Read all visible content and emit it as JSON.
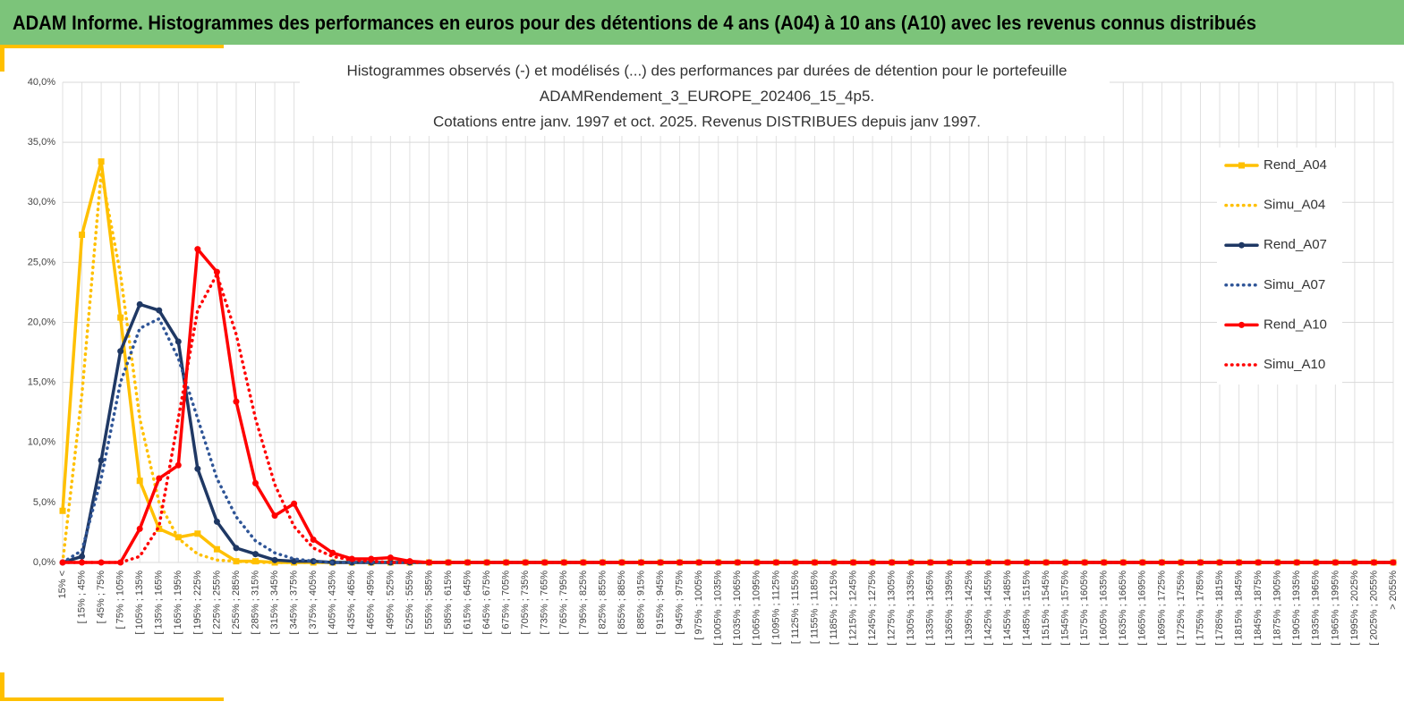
{
  "header": {
    "title": "ADAM Informe. Histogrammes des performances en euros pour des détentions de 4 ans (A04) à 10 ans (A10) avec les revenus connus distribués"
  },
  "chart_data": {
    "type": "line",
    "title": [
      "Histogrammes observés (-) et modélisés (...) des performances  par durées de détention pour le portefeuille",
      "ADAMRendement_3_EUROPE_202406_15_4p5.",
      "Cotations entre janv. 1997 et oct. 2025. Revenus DISTRIBUES depuis janv 1997."
    ],
    "categories": [
      "15% <",
      "[ 15% ; 45%",
      "[ 45% ; 75%",
      "[ 75% ; 105%",
      "[ 105% ; 135%",
      "[ 135% ; 165%",
      "[ 165% ; 195%",
      "[ 195% ; 225%",
      "[ 225% ; 255%",
      "[ 255% ; 285%",
      "[ 285% ; 315%",
      "[ 315% ; 345%",
      "[ 345% ; 375%",
      "[ 375% ; 405%",
      "[ 405% ; 435%",
      "[ 435% ; 465%",
      "[ 465% ; 495%",
      "[ 495% ; 525%",
      "[ 525% ; 555%",
      "[ 555% ; 585%",
      "[ 585% ; 615%",
      "[ 615% ; 645%",
      "[ 645% ; 675%",
      "[ 675% ; 705%",
      "[ 705% ; 735%",
      "[ 735% ; 765%",
      "[ 765% ; 795%",
      "[ 795% ; 825%",
      "[ 825% ; 855%",
      "[ 855% ; 885%",
      "[ 885% ; 915%",
      "[ 915% ; 945%",
      "[ 945% ; 975%",
      "[ 975% ; 1005%",
      "[ 1005% ; 1035%",
      "[ 1035% ; 1065%",
      "[ 1065% ; 1095%",
      "[ 1095% ; 1125%",
      "[ 1125% ; 1155%",
      "[ 1155% ; 1185%",
      "[ 1185% ; 1215%",
      "[ 1215% ; 1245%",
      "[ 1245% ; 1275%",
      "[ 1275% ; 1305%",
      "[ 1305% ; 1335%",
      "[ 1335% ; 1365%",
      "[ 1365% ; 1395%",
      "[ 1395% ; 1425%",
      "[ 1425% ; 1455%",
      "[ 1455% ; 1485%",
      "[ 1485% ; 1515%",
      "[ 1515% ; 1545%",
      "[ 1545% ; 1575%",
      "[ 1575% ; 1605%",
      "[ 1605% ; 1635%",
      "[ 1635% ; 1665%",
      "[ 1665% ; 1695%",
      "[ 1695% ; 1725%",
      "[ 1725% ; 1755%",
      "[ 1755% ; 1785%",
      "[ 1785% ; 1815%",
      "[ 1815% ; 1845%",
      "[ 1845% ; 1875%",
      "[ 1875% ; 1905%",
      "[ 1905% ; 1935%",
      "[ 1935% ; 1965%",
      "[ 1965% ; 1995%",
      "[ 1995% ; 2025%",
      "[ 2025% ; 2055%",
      "> 2055%"
    ],
    "series": [
      {
        "name": "Rend_A04",
        "color": "#ffc000",
        "dotted": false,
        "marker": "square",
        "values": [
          4.3,
          27.3,
          33.4,
          20.4,
          6.8,
          2.8,
          2.1,
          2.4,
          1.1,
          0.1,
          0.1,
          0,
          0,
          0,
          0,
          0,
          0,
          0,
          0,
          0,
          0,
          0,
          0,
          0,
          0,
          0,
          0,
          0,
          0,
          0,
          0,
          0,
          0,
          0,
          0,
          0,
          0,
          0,
          0,
          0,
          0,
          0,
          0,
          0,
          0,
          0,
          0,
          0,
          0,
          0,
          0,
          0,
          0,
          0,
          0,
          0,
          0,
          0,
          0,
          0,
          0,
          0,
          0,
          0,
          0,
          0,
          0,
          0,
          0,
          0
        ]
      },
      {
        "name": "Simu_A04",
        "color": "#ffc000",
        "dotted": true,
        "values": [
          0,
          14,
          32.5,
          24,
          12,
          5,
          2,
          0.7,
          0.2,
          0.1,
          0,
          0,
          0,
          0,
          0,
          0,
          0,
          0,
          0,
          0,
          0,
          0,
          0,
          0,
          0,
          0,
          0,
          0,
          0,
          0,
          0,
          0,
          0,
          0,
          0,
          0,
          0,
          0,
          0,
          0,
          0,
          0,
          0,
          0,
          0,
          0,
          0,
          0,
          0,
          0,
          0,
          0,
          0,
          0,
          0,
          0,
          0,
          0,
          0,
          0,
          0,
          0,
          0,
          0,
          0,
          0,
          0,
          0,
          0,
          0
        ]
      },
      {
        "name": "Rend_A07",
        "color": "#1f3864",
        "dotted": false,
        "marker": "circle",
        "values": [
          0,
          0.5,
          8.5,
          17.6,
          21.5,
          21,
          18.4,
          7.8,
          3.4,
          1.2,
          0.7,
          0.2,
          0.1,
          0.1,
          0,
          0,
          0,
          0,
          0,
          0,
          0,
          0,
          0,
          0,
          0,
          0,
          0,
          0,
          0,
          0,
          0,
          0,
          0,
          0,
          0,
          0,
          0,
          0,
          0,
          0,
          0,
          0,
          0,
          0,
          0,
          0,
          0,
          0,
          0,
          0,
          0,
          0,
          0,
          0,
          0,
          0,
          0,
          0,
          0,
          0,
          0,
          0,
          0,
          0,
          0,
          0,
          0,
          0,
          0,
          0
        ]
      },
      {
        "name": "Simu_A07",
        "color": "#2f5597",
        "dotted": true,
        "values": [
          0,
          1,
          7,
          15,
          19.5,
          20.3,
          17,
          12,
          7,
          3.8,
          1.8,
          0.8,
          0.3,
          0.1,
          0,
          0,
          0,
          0,
          0,
          0,
          0,
          0,
          0,
          0,
          0,
          0,
          0,
          0,
          0,
          0,
          0,
          0,
          0,
          0,
          0,
          0,
          0,
          0,
          0,
          0,
          0,
          0,
          0,
          0,
          0,
          0,
          0,
          0,
          0,
          0,
          0,
          0,
          0,
          0,
          0,
          0,
          0,
          0,
          0,
          0,
          0,
          0,
          0,
          0,
          0,
          0,
          0,
          0,
          0,
          0
        ]
      },
      {
        "name": "Rend_A10",
        "color": "#ff0000",
        "dotted": false,
        "marker": "circle",
        "values": [
          0,
          0,
          0,
          0,
          2.8,
          7,
          8.1,
          26.1,
          24.2,
          13.4,
          6.6,
          3.9,
          4.9,
          1.9,
          0.8,
          0.3,
          0.3,
          0.4,
          0.1,
          0,
          0,
          0,
          0,
          0,
          0,
          0,
          0,
          0,
          0,
          0,
          0,
          0,
          0,
          0,
          0,
          0,
          0,
          0,
          0,
          0,
          0,
          0,
          0,
          0,
          0,
          0,
          0,
          0,
          0,
          0,
          0,
          0,
          0,
          0,
          0,
          0,
          0,
          0,
          0,
          0,
          0,
          0,
          0,
          0,
          0,
          0,
          0,
          0,
          0,
          0
        ]
      },
      {
        "name": "Simu_A10",
        "color": "#ff0000",
        "dotted": true,
        "values": [
          0,
          0,
          0,
          0,
          0.5,
          3,
          12,
          21,
          24,
          19,
          12,
          6.5,
          3,
          1.2,
          0.5,
          0.2,
          0.1,
          0,
          0,
          0,
          0,
          0,
          0,
          0,
          0,
          0,
          0,
          0,
          0,
          0,
          0,
          0,
          0,
          0,
          0,
          0,
          0,
          0,
          0,
          0,
          0,
          0,
          0,
          0,
          0,
          0,
          0,
          0,
          0,
          0,
          0,
          0,
          0,
          0,
          0,
          0,
          0,
          0,
          0,
          0,
          0,
          0,
          0,
          0,
          0,
          0,
          0,
          0,
          0,
          0
        ]
      }
    ],
    "ylim": [
      0,
      40
    ],
    "yticks": [
      {
        "value": 0,
        "label": "0,0%"
      },
      {
        "value": 5,
        "label": "5,0%"
      },
      {
        "value": 10,
        "label": "10,0%"
      },
      {
        "value": 15,
        "label": "15,0%"
      },
      {
        "value": 20,
        "label": "20,0%"
      },
      {
        "value": 25,
        "label": "25,0%"
      },
      {
        "value": 30,
        "label": "30,0%"
      },
      {
        "value": 35,
        "label": "35,0%"
      },
      {
        "value": 40,
        "label": "40,0%"
      }
    ],
    "grid": true
  }
}
